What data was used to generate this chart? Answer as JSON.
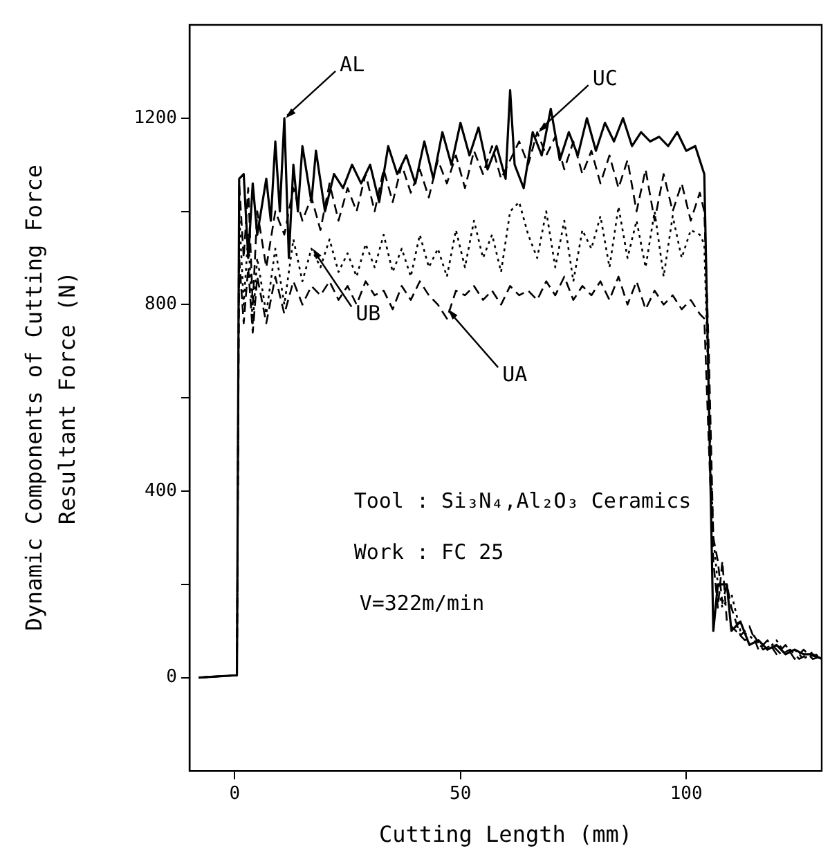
{
  "chart_data": {
    "type": "line",
    "xlabel": "Cutting Length (mm)",
    "ylabel": "Dynamic Components of Cutting Force\nResultant Force (N)",
    "xlim": [
      -10,
      130
    ],
    "xticks": [
      0,
      50,
      100
    ],
    "ylim": [
      -200,
      1400
    ],
    "yticks": [
      0,
      {
        "value": 200,
        "label": null
      },
      400,
      {
        "value": 600,
        "label": null
      },
      800,
      {
        "value": 1000,
        "label": null
      },
      1200
    ],
    "grid": false,
    "legend": false,
    "marker": "none",
    "series": [
      {
        "color": "#000000",
        "line_style": "solid",
        "x": [
          -8,
          0.5,
          1,
          2,
          3,
          4,
          5,
          7,
          8,
          9,
          10,
          11,
          12,
          13,
          14,
          15,
          17,
          18,
          20,
          22,
          24,
          26,
          28,
          30,
          32,
          34,
          36,
          38,
          40,
          42,
          44,
          46,
          48,
          50,
          52,
          54,
          56,
          58,
          60,
          61,
          62,
          64,
          66,
          68,
          70,
          72,
          74,
          76,
          78,
          80,
          82,
          84,
          86,
          88,
          90,
          92,
          94,
          96,
          98,
          100,
          102,
          104,
          105,
          106,
          107,
          109,
          110,
          112,
          114,
          116,
          118,
          120,
          122,
          124,
          126,
          128,
          130
        ],
        "values": [
          0,
          5,
          1070,
          1080,
          900,
          1060,
          950,
          1070,
          980,
          1150,
          1000,
          1200,
          900,
          1100,
          1000,
          1140,
          1020,
          1130,
          1000,
          1080,
          1050,
          1100,
          1060,
          1100,
          1020,
          1140,
          1080,
          1120,
          1060,
          1150,
          1070,
          1170,
          1100,
          1190,
          1120,
          1180,
          1090,
          1140,
          1070,
          1260,
          1100,
          1050,
          1170,
          1120,
          1220,
          1110,
          1170,
          1120,
          1200,
          1130,
          1190,
          1150,
          1200,
          1140,
          1170,
          1150,
          1160,
          1140,
          1170,
          1130,
          1140,
          1080,
          600,
          100,
          200,
          200,
          100,
          120,
          70,
          80,
          60,
          70,
          50,
          60,
          50,
          50,
          40
        ]
      },
      {
        "color": "#000000",
        "line_style": "dashed",
        "x": [
          -8,
          0.5,
          1,
          2,
          3,
          4,
          5,
          7,
          9,
          11,
          13,
          15,
          17,
          19,
          21,
          23,
          25,
          27,
          29,
          31,
          33,
          35,
          37,
          39,
          41,
          43,
          45,
          47,
          49,
          51,
          53,
          55,
          57,
          59,
          61,
          63,
          65,
          67,
          69,
          71,
          73,
          75,
          77,
          79,
          81,
          83,
          85,
          87,
          89,
          91,
          93,
          95,
          97,
          99,
          101,
          103,
          104,
          105,
          106,
          107,
          108,
          109,
          110,
          112,
          114,
          116,
          118,
          120,
          122,
          124,
          126,
          128,
          130
        ],
        "values": [
          0,
          5,
          1060,
          900,
          1050,
          800,
          1000,
          880,
          1000,
          950,
          1050,
          980,
          1030,
          960,
          1060,
          980,
          1050,
          1000,
          1080,
          1000,
          1090,
          1020,
          1100,
          1040,
          1090,
          1030,
          1110,
          1060,
          1120,
          1050,
          1130,
          1080,
          1140,
          1070,
          1110,
          1150,
          1100,
          1170,
          1120,
          1160,
          1090,
          1150,
          1080,
          1130,
          1060,
          1120,
          1050,
          1110,
          1000,
          1090,
          980,
          1080,
          1000,
          1060,
          980,
          1040,
          1000,
          700,
          300,
          250,
          160,
          200,
          150,
          90,
          110,
          60,
          80,
          50,
          70,
          40,
          60,
          40,
          45
        ]
      },
      {
        "color": "#000000",
        "line_style": "dotted",
        "x": [
          -8,
          0.5,
          1,
          2,
          3,
          4,
          5,
          7,
          9,
          11,
          13,
          15,
          17,
          19,
          21,
          23,
          25,
          27,
          29,
          31,
          33,
          35,
          37,
          39,
          41,
          43,
          45,
          47,
          49,
          51,
          53,
          55,
          57,
          59,
          61,
          63,
          65,
          67,
          69,
          71,
          73,
          75,
          77,
          79,
          81,
          83,
          85,
          87,
          89,
          91,
          93,
          95,
          97,
          99,
          101,
          103,
          104,
          105,
          106,
          107,
          108,
          110,
          112,
          114,
          116,
          118,
          120,
          122,
          124,
          126,
          128,
          130
        ],
        "values": [
          0,
          5,
          1000,
          800,
          950,
          760,
          900,
          780,
          920,
          800,
          940,
          850,
          920,
          880,
          940,
          870,
          910,
          860,
          930,
          880,
          950,
          870,
          920,
          860,
          950,
          880,
          920,
          860,
          960,
          880,
          980,
          900,
          950,
          870,
          1000,
          1020,
          950,
          900,
          1000,
          880,
          980,
          850,
          960,
          920,
          990,
          880,
          1010,
          900,
          980,
          880,
          1000,
          860,
          990,
          900,
          960,
          950,
          930,
          600,
          300,
          200,
          150,
          180,
          100,
          90,
          70,
          60,
          80,
          50,
          60,
          40,
          55,
          40
        ]
      },
      {
        "color": "#000000",
        "line_style": "dashed",
        "x": [
          -8,
          0.5,
          1,
          2,
          3,
          4,
          5,
          7,
          9,
          11,
          13,
          15,
          17,
          19,
          21,
          23,
          25,
          27,
          29,
          31,
          33,
          35,
          37,
          39,
          41,
          43,
          45,
          47,
          49,
          51,
          53,
          55,
          57,
          59,
          61,
          63,
          65,
          67,
          69,
          71,
          73,
          75,
          77,
          79,
          81,
          83,
          85,
          87,
          89,
          91,
          93,
          95,
          97,
          99,
          101,
          103,
          104,
          105,
          106,
          107,
          108,
          109,
          111,
          113,
          115,
          117,
          119,
          121,
          123,
          125,
          127,
          130
        ],
        "values": [
          0,
          5,
          900,
          760,
          880,
          740,
          860,
          760,
          860,
          780,
          850,
          800,
          840,
          820,
          850,
          810,
          840,
          800,
          850,
          820,
          830,
          790,
          840,
          810,
          850,
          820,
          800,
          770,
          830,
          820,
          840,
          810,
          830,
          800,
          840,
          820,
          830,
          810,
          850,
          820,
          860,
          810,
          840,
          820,
          850,
          810,
          860,
          800,
          850,
          790,
          830,
          800,
          820,
          790,
          810,
          780,
          770,
          500,
          250,
          150,
          250,
          120,
          100,
          80,
          90,
          60,
          70,
          50,
          60,
          40,
          50,
          40
        ]
      }
    ],
    "annotations": [
      {
        "text": "AL",
        "x": 11,
        "y": 1200
      },
      {
        "text": "UC",
        "x": 67,
        "y": 1170
      },
      {
        "text": "UB",
        "x": 17,
        "y": 920
      },
      {
        "text": "UA",
        "x": 47,
        "y": 790
      },
      "Tool : Si₃N₄,Al₂O₃ Ceramics",
      "Work : FC 25",
      "V=322m/min"
    ]
  }
}
